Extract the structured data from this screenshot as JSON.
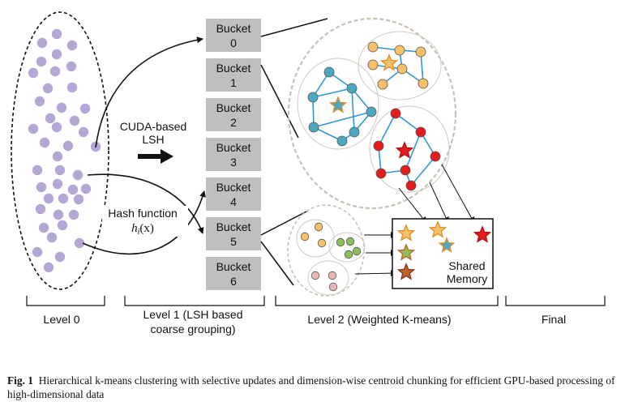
{
  "colors": {
    "point": "#b4a7d6",
    "bucket": "#bfbfbf",
    "blue_node": "#4aa8c0",
    "orange_node": "#f9c06a",
    "red_node": "#e31d1d",
    "green_node": "#8dbf5c",
    "pink_node": "#e8b8b6",
    "edge": "#2f97d6",
    "cluster_border": "#c9bfb3"
  },
  "diagram": {
    "lsh_label_line1": "CUDA-based",
    "lsh_label_line2": "LSH",
    "hash_label": "Hash function",
    "hash_formula": "h",
    "hash_formula_sub": "i",
    "hash_formula_arg": "(x)",
    "bucket_word": "Bucket",
    "bucket_numbers": [
      "0",
      "1",
      "2",
      "3",
      "4",
      "5",
      "6"
    ],
    "shared_memory_line1": "Shared",
    "shared_memory_line2": "Memory",
    "level0_label": "Level 0",
    "level1_label_line1": "Level 1 (LSH based",
    "level1_label_line2": "coarse grouping)",
    "level2_label": "Level 2 (Weighted K-means)",
    "final_label": "Final"
  },
  "caption": {
    "prefix": "Fig. 1",
    "text": "Hierarchical k-means clustering with selective updates and dimension-wise centroid chunking for efficient GPU-based processing of high-dimensional data"
  }
}
